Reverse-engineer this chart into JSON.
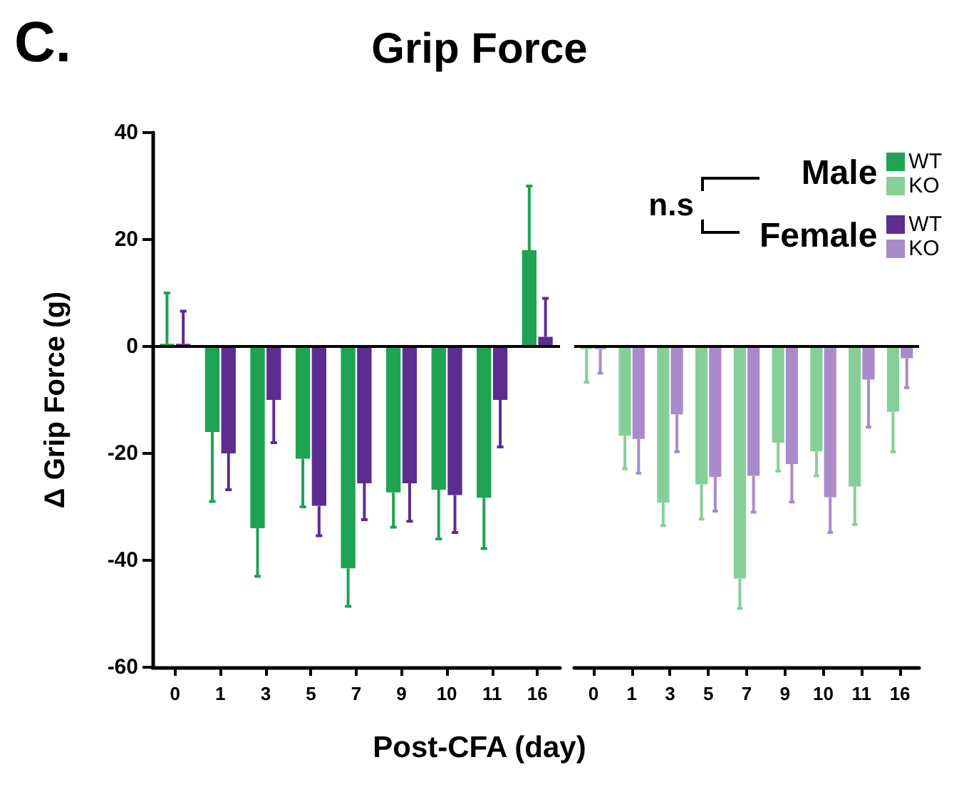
{
  "chart_data": [
    {
      "type": "bar",
      "title": "Grip Force",
      "xlabel": "Post-CFA (day)",
      "ylabel": "Δ Grip Force (g)",
      "annotations": [
        "C."
      ],
      "categories": [
        "0",
        "1",
        "3",
        "5",
        "7",
        "9",
        "10",
        "11",
        "16"
      ],
      "series": [
        {
          "name": "WT",
          "color": "#1ea353",
          "values": [
            0.5,
            -16,
            -34,
            -21,
            -41.5,
            -27.3,
            -26.8,
            -28.3,
            18
          ],
          "errors": [
            [
              0.5,
              10
            ],
            [
              -29,
              -16
            ],
            [
              -43,
              -34
            ],
            [
              -30,
              -21
            ],
            [
              -48.6,
              -41.5
            ],
            [
              -33.8,
              -27.3
            ],
            [
              -36,
              -26.8
            ],
            [
              -37.8,
              -28.3
            ],
            [
              18,
              30
            ]
          ]
        },
        {
          "name": "WT",
          "color": "#5c2d91",
          "values": [
            0.5,
            -20,
            -10,
            -29.8,
            -25.6,
            -25.6,
            -27.8,
            -10,
            1.8
          ],
          "errors": [
            [
              0.5,
              6.6
            ],
            [
              -26.8,
              -20
            ],
            [
              -18,
              -10
            ],
            [
              -35.4,
              -29.8
            ],
            [
              -32.4,
              -25.6
            ],
            [
              -32.7,
              -25.6
            ],
            [
              -34.8,
              -27.8
            ],
            [
              -18.8,
              -10
            ],
            [
              1.8,
              9
            ]
          ]
        }
      ],
      "ylim": [
        -60,
        40
      ],
      "yticks": [
        -60,
        -40,
        -20,
        0,
        20,
        40
      ],
      "ref_lines": [
        {
          "axis": "y",
          "value": 0
        }
      ]
    },
    {
      "type": "bar",
      "annotations": [
        "n.s",
        "Male",
        "Female"
      ],
      "categories": [
        "0",
        "1",
        "3",
        "5",
        "7",
        "9",
        "10",
        "11",
        "16"
      ],
      "series": [
        {
          "name": "KO",
          "color": "#86cf99",
          "values": [
            -0.5,
            -16.7,
            -29.2,
            -25.8,
            -43.4,
            -18,
            -19.6,
            -26.2,
            -12.2
          ],
          "errors": [
            [
              -6.7,
              -0.5
            ],
            [
              -22.9,
              -16.7
            ],
            [
              -33.5,
              -29.2
            ],
            [
              -32.3,
              -25.8
            ],
            [
              -49,
              -43.4
            ],
            [
              -23.3,
              -18
            ],
            [
              -24.2,
              -19.6
            ],
            [
              -33.3,
              -26.2
            ],
            [
              -19.7,
              -12.2
            ]
          ]
        },
        {
          "name": "KO",
          "color": "#a98bcb",
          "values": [
            -0.5,
            -17.3,
            -12.7,
            -24.4,
            -24.2,
            -22,
            -28.2,
            -6.2,
            -2.2
          ],
          "errors": [
            [
              -5,
              -0.5
            ],
            [
              -23.7,
              -17.3
            ],
            [
              -19.7,
              -12.7
            ],
            [
              -30.8,
              -24.4
            ],
            [
              -31,
              -24.2
            ],
            [
              -29.1,
              -22
            ],
            [
              -34.8,
              -28.2
            ],
            [
              -15.1,
              -6.2
            ],
            [
              -7.7,
              -2.2
            ]
          ]
        }
      ],
      "ylim": [
        -60,
        40
      ],
      "tick_labels": "x",
      "legend": "top right",
      "ref_lines": [
        {
          "axis": "y",
          "value": 0
        }
      ]
    }
  ]
}
